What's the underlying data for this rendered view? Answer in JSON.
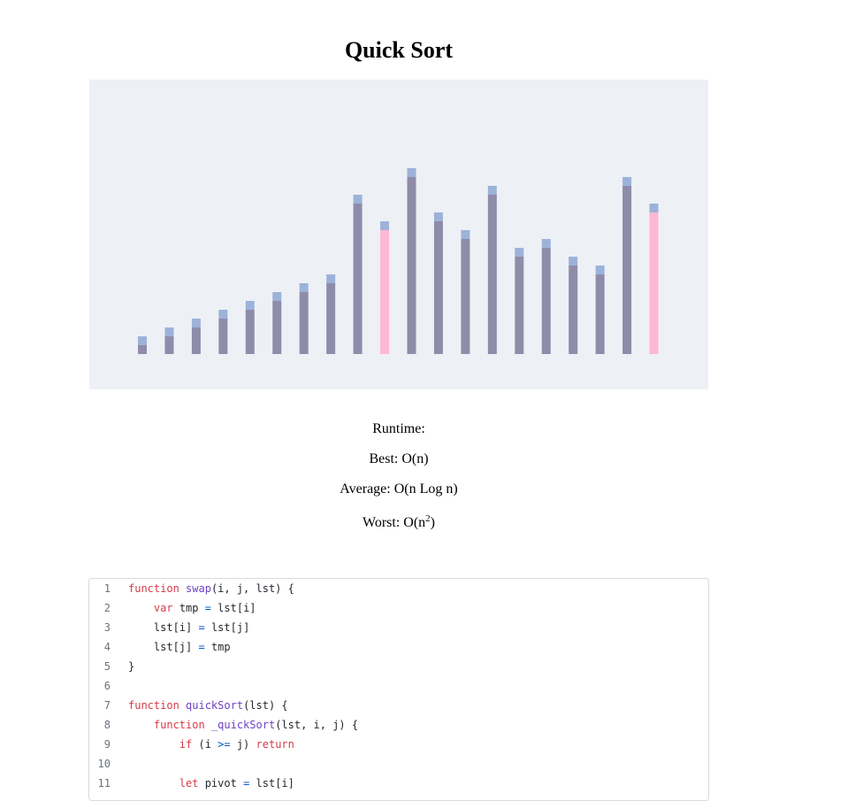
{
  "title": "Quick Sort",
  "chart_data": {
    "type": "bar",
    "values": [
      1,
      2,
      3,
      4,
      5,
      6,
      7,
      8,
      17,
      14,
      20,
      15,
      13,
      18,
      11,
      12,
      10,
      9,
      19,
      16
    ],
    "highlighted_indices": [
      9,
      19
    ],
    "colors": {
      "bar": "#8f8ca9",
      "cap": "#9db2d9",
      "highlight": "#fdb8d3",
      "background": "#edf0f5"
    }
  },
  "runtime": {
    "heading": "Runtime:",
    "best": "Best: O(n)",
    "average": "Average: O(n Log n)",
    "worst_prefix": "Worst: O(n",
    "worst_exp": "2",
    "worst_suffix": ")"
  },
  "code": {
    "lines": [
      [
        [
          "kw",
          "function "
        ],
        [
          "fn",
          "swap"
        ],
        [
          "",
          "(i, j, lst) {"
        ]
      ],
      [
        [
          "",
          "    "
        ],
        [
          "kw",
          "var"
        ],
        [
          "",
          " tmp "
        ],
        [
          "op",
          "="
        ],
        [
          "",
          " lst[i]"
        ]
      ],
      [
        [
          "",
          "    lst[i] "
        ],
        [
          "op",
          "="
        ],
        [
          "",
          " lst[j]"
        ]
      ],
      [
        [
          "",
          "    lst[j] "
        ],
        [
          "op",
          "="
        ],
        [
          "",
          " tmp"
        ]
      ],
      [
        [
          "",
          "}"
        ]
      ],
      [],
      [
        [
          "kw",
          "function "
        ],
        [
          "fn",
          "quickSort"
        ],
        [
          "",
          "(lst) {"
        ]
      ],
      [
        [
          "",
          "    "
        ],
        [
          "kw",
          "function "
        ],
        [
          "fn",
          "_quickSort"
        ],
        [
          "",
          "(lst, i, j) {"
        ]
      ],
      [
        [
          "",
          "        "
        ],
        [
          "kw",
          "if"
        ],
        [
          "",
          " (i "
        ],
        [
          "op",
          ">="
        ],
        [
          "",
          " j) "
        ],
        [
          "kw",
          "return"
        ]
      ],
      [],
      [
        [
          "",
          "        "
        ],
        [
          "kw",
          "let"
        ],
        [
          "",
          " pivot "
        ],
        [
          "op",
          "="
        ],
        [
          "",
          " lst[i]"
        ]
      ]
    ]
  }
}
